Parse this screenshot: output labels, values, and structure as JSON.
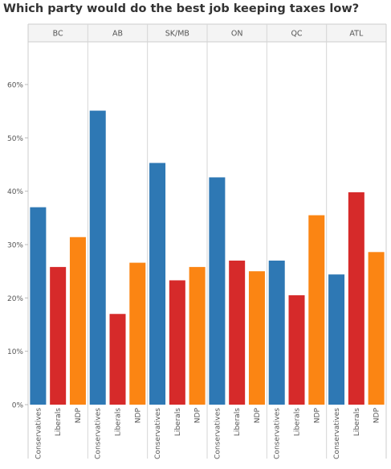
{
  "chart_data": {
    "type": "bar",
    "title": "Which party would do the best job keeping taxes low?",
    "xlabel": "",
    "ylabel": "",
    "ylim": [
      0,
      68
    ],
    "y_ticks": [
      "0%",
      "10%",
      "20%",
      "30%",
      "40%",
      "50%",
      "60%"
    ],
    "grid": false,
    "legend": "none",
    "panels": [
      "BC",
      "AB",
      "SK/MB",
      "ON",
      "QC",
      "ATL"
    ],
    "categories": [
      "Conservatives",
      "Liberals",
      "NDP"
    ],
    "colors": {
      "Conservatives": "#2e78b4",
      "Liberals": "#d62a2a",
      "NDP": "#fb8513"
    },
    "values": {
      "BC": [
        37.0,
        25.8,
        31.4
      ],
      "AB": [
        55.1,
        17.0,
        26.6
      ],
      "SK/MB": [
        45.3,
        23.3,
        25.8
      ],
      "ON": [
        42.6,
        27.0,
        25.0
      ],
      "QC": [
        27.0,
        20.5,
        35.5
      ],
      "ATL": [
        24.4,
        39.8,
        28.6
      ]
    }
  }
}
